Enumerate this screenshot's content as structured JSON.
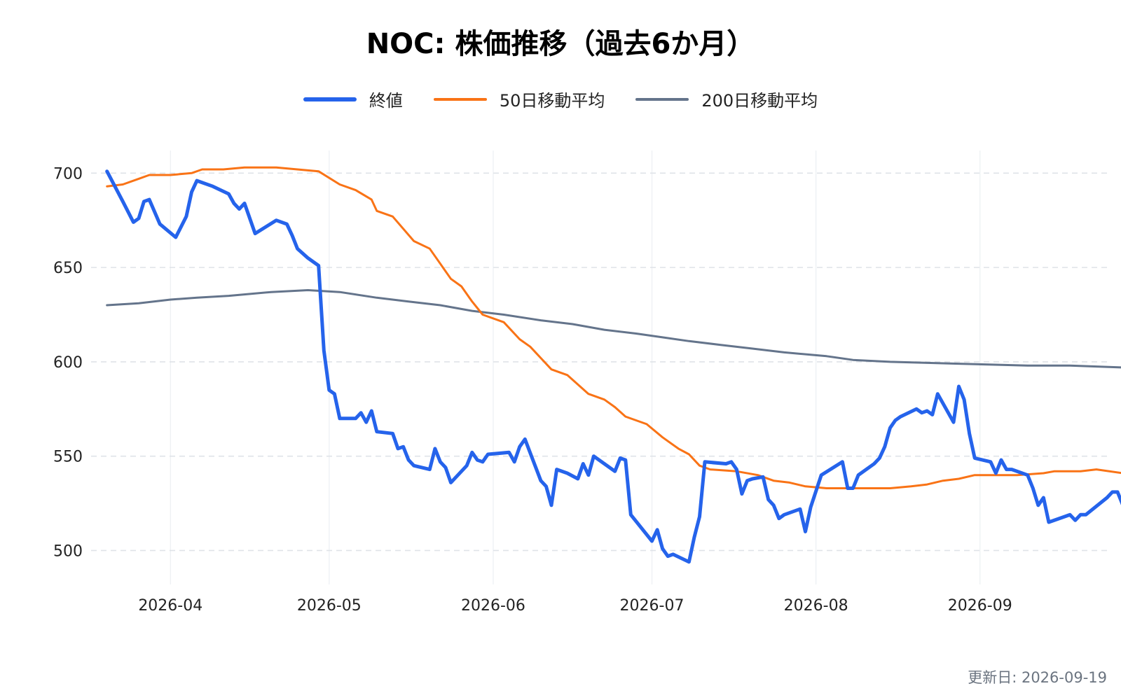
{
  "chart_data": {
    "type": "line",
    "title": "NOC: 株価推移（過去6か月）",
    "xlabel": "",
    "ylabel": "",
    "x_range": [
      "2026-03-17",
      "2026-09-25"
    ],
    "ylim": [
      482,
      712
    ],
    "y_ticks": [
      500,
      550,
      600,
      650,
      700
    ],
    "x_ticks": [
      "2026-04-01",
      "2026-05-01",
      "2026-06-01",
      "2026-07-01",
      "2026-08-01",
      "2026-09-01"
    ],
    "x_tick_labels": [
      "2026-04",
      "2026-05",
      "2026-06",
      "2026-07",
      "2026-08",
      "2026-09"
    ],
    "grid": true,
    "legend_position": "top-center",
    "series": [
      {
        "name": "終値",
        "color": "#2563eb",
        "width": 5,
        "points": [
          [
            "2026-03-20",
            701
          ],
          [
            "2026-03-23",
            685
          ],
          [
            "2026-03-25",
            674
          ],
          [
            "2026-03-26",
            676
          ],
          [
            "2026-03-27",
            685
          ],
          [
            "2026-03-28",
            686
          ],
          [
            "2026-03-30",
            673
          ],
          [
            "2026-04-02",
            666
          ],
          [
            "2026-04-04",
            677
          ],
          [
            "2026-04-05",
            690
          ],
          [
            "2026-04-06",
            696
          ],
          [
            "2026-04-09",
            693
          ],
          [
            "2026-04-12",
            689
          ],
          [
            "2026-04-13",
            684
          ],
          [
            "2026-04-14",
            681
          ],
          [
            "2026-04-15",
            684
          ],
          [
            "2026-04-17",
            668
          ],
          [
            "2026-04-21",
            675
          ],
          [
            "2026-04-23",
            673
          ],
          [
            "2026-04-24",
            667
          ],
          [
            "2026-04-25",
            660
          ],
          [
            "2026-04-27",
            655
          ],
          [
            "2026-04-29",
            651
          ],
          [
            "2026-04-30",
            606
          ],
          [
            "2026-05-01",
            585
          ],
          [
            "2026-05-02",
            583
          ],
          [
            "2026-05-03",
            570
          ],
          [
            "2026-05-06",
            570
          ],
          [
            "2026-05-07",
            573
          ],
          [
            "2026-05-08",
            568
          ],
          [
            "2026-05-09",
            574
          ],
          [
            "2026-05-10",
            563
          ],
          [
            "2026-05-13",
            562
          ],
          [
            "2026-05-14",
            554
          ],
          [
            "2026-05-15",
            555
          ],
          [
            "2026-05-16",
            548
          ],
          [
            "2026-05-17",
            545
          ],
          [
            "2026-05-20",
            543
          ],
          [
            "2026-05-21",
            554
          ],
          [
            "2026-05-22",
            547
          ],
          [
            "2026-05-23",
            544
          ],
          [
            "2026-05-24",
            536
          ],
          [
            "2026-05-27",
            545
          ],
          [
            "2026-05-28",
            552
          ],
          [
            "2026-05-29",
            548
          ],
          [
            "2026-05-30",
            547
          ],
          [
            "2026-05-31",
            551
          ],
          [
            "2026-06-04",
            552
          ],
          [
            "2026-06-05",
            547
          ],
          [
            "2026-06-06",
            555
          ],
          [
            "2026-06-07",
            559
          ],
          [
            "2026-06-10",
            537
          ],
          [
            "2026-06-11",
            534
          ],
          [
            "2026-06-12",
            524
          ],
          [
            "2026-06-13",
            543
          ],
          [
            "2026-06-15",
            541
          ],
          [
            "2026-06-17",
            538
          ],
          [
            "2026-06-18",
            546
          ],
          [
            "2026-06-19",
            540
          ],
          [
            "2026-06-20",
            550
          ],
          [
            "2026-06-24",
            542
          ],
          [
            "2026-06-25",
            549
          ],
          [
            "2026-06-26",
            548
          ],
          [
            "2026-06-27",
            519
          ],
          [
            "2026-07-01",
            505
          ],
          [
            "2026-07-02",
            511
          ],
          [
            "2026-07-03",
            501
          ],
          [
            "2026-07-04",
            497
          ],
          [
            "2026-07-05",
            498
          ],
          [
            "2026-07-08",
            494
          ],
          [
            "2026-07-09",
            507
          ],
          [
            "2026-07-10",
            518
          ],
          [
            "2026-07-11",
            547
          ],
          [
            "2026-07-15",
            546
          ],
          [
            "2026-07-16",
            547
          ],
          [
            "2026-07-17",
            543
          ],
          [
            "2026-07-18",
            530
          ],
          [
            "2026-07-19",
            537
          ],
          [
            "2026-07-20",
            538
          ],
          [
            "2026-07-22",
            539
          ],
          [
            "2026-07-23",
            527
          ],
          [
            "2026-07-24",
            524
          ],
          [
            "2026-07-25",
            517
          ],
          [
            "2026-07-26",
            519
          ],
          [
            "2026-07-29",
            522
          ],
          [
            "2026-07-30",
            510
          ],
          [
            "2026-07-31",
            523
          ],
          [
            "2026-08-02",
            540
          ],
          [
            "2026-08-06",
            547
          ],
          [
            "2026-08-07",
            533
          ],
          [
            "2026-08-08",
            533
          ],
          [
            "2026-08-09",
            540
          ],
          [
            "2026-08-12",
            546
          ],
          [
            "2026-08-13",
            549
          ],
          [
            "2026-08-14",
            555
          ],
          [
            "2026-08-15",
            565
          ],
          [
            "2026-08-16",
            569
          ],
          [
            "2026-08-17",
            571
          ],
          [
            "2026-08-20",
            575
          ],
          [
            "2026-08-21",
            573
          ],
          [
            "2026-08-22",
            574
          ],
          [
            "2026-08-23",
            572
          ],
          [
            "2026-08-24",
            583
          ],
          [
            "2026-08-27",
            568
          ],
          [
            "2026-08-28",
            587
          ],
          [
            "2026-08-29",
            580
          ],
          [
            "2026-08-30",
            562
          ],
          [
            "2026-08-31",
            549
          ],
          [
            "2026-09-03",
            547
          ],
          [
            "2026-09-04",
            541
          ],
          [
            "2026-09-05",
            548
          ],
          [
            "2026-09-06",
            543
          ],
          [
            "2026-09-07",
            543
          ],
          [
            "2026-09-10",
            540
          ],
          [
            "2026-09-11",
            533
          ],
          [
            "2026-09-12",
            524
          ],
          [
            "2026-09-13",
            528
          ],
          [
            "2026-09-14",
            515
          ],
          [
            "2026-09-17",
            518
          ],
          [
            "2026-09-18",
            519
          ],
          [
            "2026-09-19",
            516
          ],
          [
            "2026-09-20",
            519
          ],
          [
            "2026-09-21",
            519
          ],
          [
            "2026-09-25",
            528
          ],
          [
            "2026-09-26",
            531
          ],
          [
            "2026-09-27",
            531
          ],
          [
            "2026-09-28",
            524
          ]
        ]
      },
      {
        "name": "50日移動平均",
        "color": "#f97316",
        "width": 3,
        "points": [
          [
            "2026-03-20",
            693
          ],
          [
            "2026-03-23",
            694
          ],
          [
            "2026-03-26",
            697
          ],
          [
            "2026-03-28",
            699
          ],
          [
            "2026-04-01",
            699
          ],
          [
            "2026-04-05",
            700
          ],
          [
            "2026-04-07",
            702
          ],
          [
            "2026-04-11",
            702
          ],
          [
            "2026-04-15",
            703
          ],
          [
            "2026-04-21",
            703
          ],
          [
            "2026-04-25",
            702
          ],
          [
            "2026-04-29",
            701
          ],
          [
            "2026-05-03",
            694
          ],
          [
            "2026-05-06",
            691
          ],
          [
            "2026-05-09",
            686
          ],
          [
            "2026-05-10",
            680
          ],
          [
            "2026-05-13",
            677
          ],
          [
            "2026-05-17",
            664
          ],
          [
            "2026-05-20",
            660
          ],
          [
            "2026-05-22",
            652
          ],
          [
            "2026-05-24",
            644
          ],
          [
            "2026-05-26",
            640
          ],
          [
            "2026-05-28",
            632
          ],
          [
            "2026-05-30",
            625
          ],
          [
            "2026-06-03",
            621
          ],
          [
            "2026-06-06",
            612
          ],
          [
            "2026-06-08",
            608
          ],
          [
            "2026-06-10",
            602
          ],
          [
            "2026-06-12",
            596
          ],
          [
            "2026-06-15",
            593
          ],
          [
            "2026-06-17",
            588
          ],
          [
            "2026-06-19",
            583
          ],
          [
            "2026-06-22",
            580
          ],
          [
            "2026-06-24",
            576
          ],
          [
            "2026-06-26",
            571
          ],
          [
            "2026-06-30",
            567
          ],
          [
            "2026-07-03",
            560
          ],
          [
            "2026-07-06",
            554
          ],
          [
            "2026-07-08",
            551
          ],
          [
            "2026-07-10",
            545
          ],
          [
            "2026-07-12",
            543
          ],
          [
            "2026-07-17",
            542
          ],
          [
            "2026-07-21",
            540
          ],
          [
            "2026-07-24",
            537
          ],
          [
            "2026-07-27",
            536
          ],
          [
            "2026-07-30",
            534
          ],
          [
            "2026-08-03",
            533
          ],
          [
            "2026-08-08",
            533
          ],
          [
            "2026-08-15",
            533
          ],
          [
            "2026-08-19",
            534
          ],
          [
            "2026-08-22",
            535
          ],
          [
            "2026-08-25",
            537
          ],
          [
            "2026-08-28",
            538
          ],
          [
            "2026-08-31",
            540
          ],
          [
            "2026-09-03",
            540
          ],
          [
            "2026-09-08",
            540
          ],
          [
            "2026-09-13",
            541
          ],
          [
            "2026-09-15",
            542
          ],
          [
            "2026-09-20",
            542
          ],
          [
            "2026-09-23",
            543
          ],
          [
            "2026-09-28",
            541
          ]
        ]
      },
      {
        "name": "200日移動平均",
        "color": "#64748b",
        "width": 3,
        "points": [
          [
            "2026-03-20",
            630
          ],
          [
            "2026-03-26",
            631
          ],
          [
            "2026-04-01",
            633
          ],
          [
            "2026-04-06",
            634
          ],
          [
            "2026-04-12",
            635
          ],
          [
            "2026-04-20",
            637
          ],
          [
            "2026-04-27",
            638
          ],
          [
            "2026-05-03",
            637
          ],
          [
            "2026-05-10",
            634
          ],
          [
            "2026-05-16",
            632
          ],
          [
            "2026-05-22",
            630
          ],
          [
            "2026-05-28",
            627
          ],
          [
            "2026-06-03",
            625
          ],
          [
            "2026-06-10",
            622
          ],
          [
            "2026-06-16",
            620
          ],
          [
            "2026-06-22",
            617
          ],
          [
            "2026-06-28",
            615
          ],
          [
            "2026-07-03",
            613
          ],
          [
            "2026-07-08",
            611
          ],
          [
            "2026-07-14",
            609
          ],
          [
            "2026-07-20",
            607
          ],
          [
            "2026-07-26",
            605
          ],
          [
            "2026-08-03",
            603
          ],
          [
            "2026-08-08",
            601
          ],
          [
            "2026-08-15",
            600
          ],
          [
            "2026-08-28",
            599
          ],
          [
            "2026-09-10",
            598
          ],
          [
            "2026-09-18",
            598
          ],
          [
            "2026-09-28",
            597
          ]
        ]
      }
    ]
  },
  "footer": {
    "updated": "更新日: 2026-09-19"
  }
}
